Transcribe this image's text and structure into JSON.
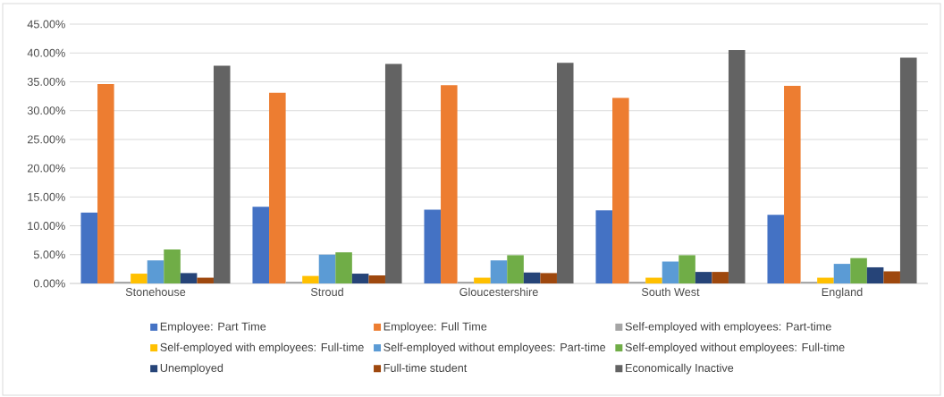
{
  "chart_data": {
    "type": "bar",
    "categories": [
      "Stonehouse",
      "Stroud",
      "Gloucestershire",
      "South West",
      "England"
    ],
    "series": [
      {
        "name": "Employee: Part Time",
        "color": "#4472c4",
        "values": [
          12.3,
          13.3,
          12.8,
          12.7,
          11.9
        ]
      },
      {
        "name": "Employee: Full Time",
        "color": "#ed7d31",
        "values": [
          34.6,
          33.1,
          34.4,
          32.2,
          34.3
        ]
      },
      {
        "name": "Self-employed with employees: Part-time",
        "color": "#a5a5a5",
        "values": [
          0.3,
          0.3,
          0.3,
          0.3,
          0.3
        ]
      },
      {
        "name": "Self-employed with employees: Full-time",
        "color": "#ffc000",
        "values": [
          1.7,
          1.3,
          1.0,
          1.0,
          1.0
        ]
      },
      {
        "name": "Self-employed without employees: Part-time",
        "color": "#5b9bd5",
        "values": [
          4.0,
          5.0,
          4.0,
          3.8,
          3.4
        ]
      },
      {
        "name": "Self-employed without employees: Full-time",
        "color": "#70ad47",
        "values": [
          5.9,
          5.4,
          4.9,
          4.9,
          4.4
        ]
      },
      {
        "name": "Unemployed",
        "color": "#264478",
        "values": [
          1.8,
          1.7,
          1.9,
          2.0,
          2.8
        ]
      },
      {
        "name": "Full-time student",
        "color": "#9e480e",
        "values": [
          1.0,
          1.4,
          1.8,
          2.0,
          2.1
        ]
      },
      {
        "name": "Economically Inactive",
        "color": "#636363",
        "values": [
          37.8,
          38.1,
          38.3,
          40.5,
          39.2
        ]
      }
    ],
    "ylim": [
      0,
      45
    ],
    "yticks": [
      {
        "value": 0,
        "label": "0.00%"
      },
      {
        "value": 5,
        "label": "5.00%"
      },
      {
        "value": 10,
        "label": "10.00%"
      },
      {
        "value": 15,
        "label": "15.00%"
      },
      {
        "value": 20,
        "label": "20.00%"
      },
      {
        "value": 25,
        "label": "25.00%"
      },
      {
        "value": 30,
        "label": "30.00%"
      },
      {
        "value": 35,
        "label": "35.00%"
      },
      {
        "value": 40,
        "label": "40.00%"
      },
      {
        "value": 45,
        "label": "45.00%"
      }
    ],
    "grid": "y",
    "legend": "bottom"
  }
}
